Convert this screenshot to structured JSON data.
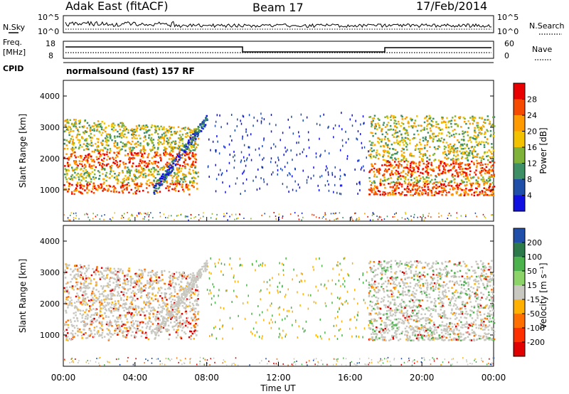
{
  "header": {
    "station": "Adak East (fitACF)",
    "beam": "Beam 17",
    "date": "17/Feb/2014"
  },
  "strip_labels": {
    "nsky": "N.Sky",
    "nsearch": "N.Search",
    "freq": "Freq.",
    "freq_unit": "[MHz]",
    "nave": "Nave",
    "cpid": "CPID",
    "cpid_value": "normalsound (fast) 157 RF"
  },
  "noise_axis_ticks": [
    "10^5",
    "10^0"
  ],
  "freq_axis_ticks": [
    "18",
    "8"
  ],
  "nave_axis_ticks": [
    "60",
    "0"
  ],
  "x_axis": {
    "label": "Time UT",
    "ticks": [
      "00:00",
      "04:00",
      "08:00",
      "12:00",
      "16:00",
      "20:00",
      "00:00"
    ]
  },
  "chart_data": [
    {
      "type": "heatmap",
      "title": "",
      "ylabel": "Slant Range [km]",
      "yticks": [
        "1000",
        "2000",
        "3000",
        "4000"
      ],
      "ylim": [
        0,
        4500
      ],
      "xlim": [
        0,
        24
      ],
      "colorbar": {
        "label": "Power [dB]",
        "ticks": [
          "28",
          "24",
          "20",
          "16",
          "12",
          "8",
          "4"
        ],
        "colors": [
          "#e80000",
          "#f54a00",
          "#ff9a00",
          "#f2c200",
          "#7fb239",
          "#3e8f66",
          "#1f4fa8",
          "#1010e0"
        ]
      }
    },
    {
      "type": "heatmap",
      "title": "",
      "ylabel": "Slant Range [km]",
      "yticks": [
        "1000",
        "2000",
        "3000",
        "4000"
      ],
      "ylim": [
        0,
        4500
      ],
      "xlim": [
        0,
        24
      ],
      "colorbar": {
        "label": "Velocity [m s⁻¹]",
        "ticks": [
          "200",
          "100",
          "50",
          "15",
          "-15",
          "-50",
          "-100",
          "-200"
        ],
        "colors": [
          "#1f4fa8",
          "#2c7a4a",
          "#4cb34c",
          "#8cd36a",
          "#c8c8c0",
          "#ffb000",
          "#ff7000",
          "#ff3000",
          "#e00000"
        ]
      }
    }
  ]
}
